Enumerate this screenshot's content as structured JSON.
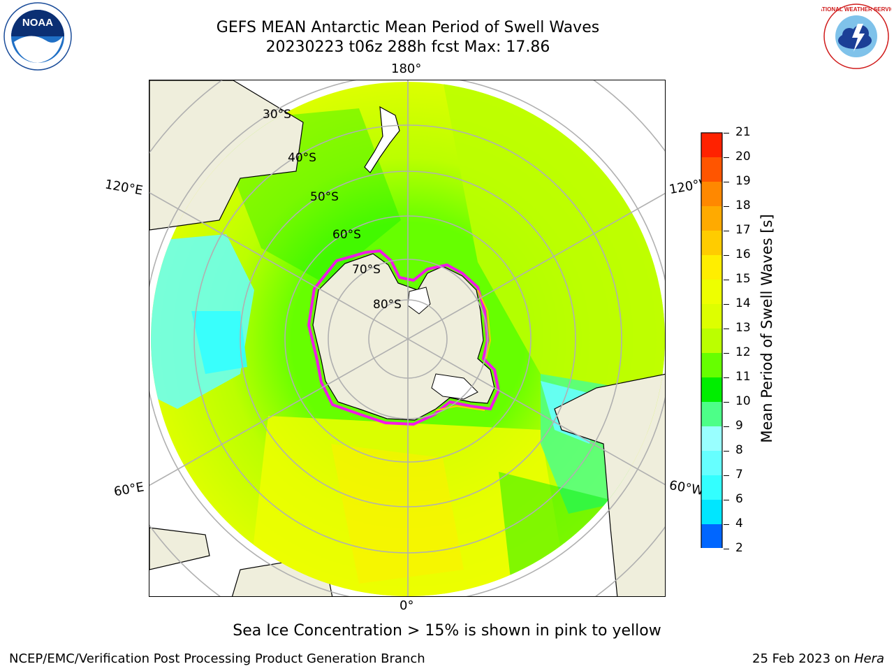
{
  "header": {
    "title_line1": "GEFS MEAN Antarctic Mean Period of Swell Waves",
    "title_line2": "20230223 t06z 288h fcst   Max: 17.86"
  },
  "logos": {
    "left": {
      "name": "noaa-logo",
      "text": "NOAA"
    },
    "right": {
      "name": "national-weather-service-logo",
      "text": "NATIONAL WEATHER SERVICE"
    }
  },
  "map": {
    "projection": "south-polar-stereographic",
    "longitude_labels": {
      "top": "180°",
      "bottom": "0°",
      "upper_left": "120°E",
      "upper_right": "120°W",
      "lower_left": "60°E",
      "lower_right": "60°W"
    },
    "latitude_labels": [
      "30°S",
      "40°S",
      "50°S",
      "60°S",
      "70°S",
      "80°S"
    ],
    "colors": {
      "land": "#efeedc",
      "ocean_dominant": "#c6f500",
      "ice_edge": "#ff00ff",
      "grid": "#b0b0b0"
    }
  },
  "colorbar": {
    "label": "Mean Period of Swell Waves [s]",
    "ticks": [
      "2",
      "4",
      "6",
      "7",
      "8",
      "9",
      "10",
      "11",
      "12",
      "13",
      "14",
      "15",
      "16",
      "17",
      "18",
      "19",
      "20",
      "21"
    ],
    "colors": [
      "#0066ff",
      "#00e6ff",
      "#33ffff",
      "#66ffff",
      "#99ffff",
      "#4dff88",
      "#00ee00",
      "#66ff00",
      "#bbff00",
      "#ddff00",
      "#eeff00",
      "#ffee00",
      "#ffcc00",
      "#ffaa00",
      "#ff8800",
      "#ff5500",
      "#ff2200"
    ],
    "extend_min_color": "#0000ee"
  },
  "footer": {
    "note": "Sea Ice Concentration > 15% is shown in pink to yellow",
    "left": "NCEP/EMC/Verification Post Processing Product Generation Branch",
    "date": "25 Feb 2023 on",
    "machine": "Hera"
  }
}
